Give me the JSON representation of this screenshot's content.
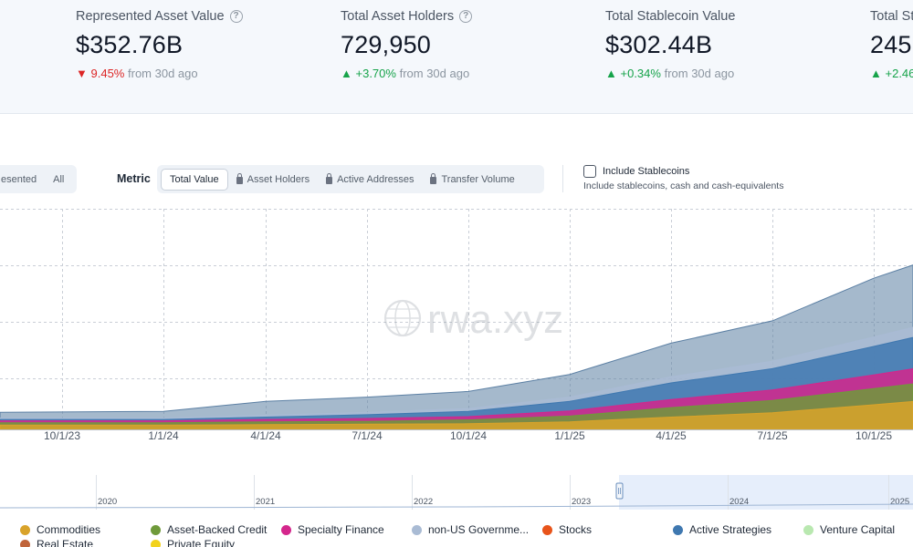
{
  "stats": [
    {
      "label": "Represented Asset Value",
      "value": "$352.76B",
      "direction": "down",
      "change": "9.45%",
      "period": "from 30d ago"
    },
    {
      "label": "Total Asset Holders",
      "value": "729,950",
      "direction": "up",
      "change": "+3.70%",
      "period": "from 30d ago"
    },
    {
      "label": "Total Stablecoin Value",
      "value": "$302.44B",
      "direction": "up",
      "change": "+0.34%",
      "period": "from 30d ago"
    },
    {
      "label": "Total Sta",
      "value": "245.",
      "direction": "up",
      "change": "+2.46"
    }
  ],
  "view_toggle": {
    "options": [
      "esented",
      "All"
    ]
  },
  "metric": {
    "label": "Metric",
    "options": [
      {
        "label": "Total Value",
        "active": true,
        "locked": false
      },
      {
        "label": "Asset Holders",
        "active": false,
        "locked": true
      },
      {
        "label": "Active Addresses",
        "active": false,
        "locked": true
      },
      {
        "label": "Transfer Volume",
        "active": false,
        "locked": true
      }
    ]
  },
  "stablecoin_toggle": {
    "label": "Include Stablecoins",
    "description": "Include stablecoins, cash and cash-equivalents",
    "checked": false
  },
  "watermark": "rwa.xyz",
  "navigator": {
    "years": [
      "2020",
      "2021",
      "2022",
      "2023",
      "2024",
      "2025"
    ]
  },
  "legend": [
    {
      "label": "Commodities",
      "color": "#d9a32a"
    },
    {
      "label": "Asset-Backed Credit",
      "color": "#6f9a3a"
    },
    {
      "label": "Specialty Finance",
      "color": "#d4268c"
    },
    {
      "label": "non-US Governme...",
      "color": "#a9bbd4"
    },
    {
      "label": "Stocks",
      "color": "#e8541a"
    },
    {
      "label": "Active Strategies",
      "color": "#3f78b0"
    },
    {
      "label": "Venture Capital",
      "color": "#b9e8b0"
    },
    {
      "label": "Real Estate",
      "color": "#c0643a"
    },
    {
      "label": "Private Equity",
      "color": "#f2d21c"
    }
  ],
  "chart_data": {
    "type": "area",
    "stacked": true,
    "x": [
      "10/1/23",
      "1/1/24",
      "4/1/24",
      "7/1/24",
      "10/1/24",
      "1/1/25",
      "4/1/25",
      "7/1/25",
      "10/1/25"
    ],
    "x_ticks": [
      "10/1/23",
      "1/1/24",
      "4/1/24",
      "7/1/24",
      "10/1/24",
      "1/1/25",
      "4/1/25",
      "7/1/25",
      "10/1/25"
    ],
    "grid": true,
    "y_tick_labels_visible": false,
    "series": [
      {
        "color": "#d9a32a",
        "values": [
          0.9,
          0.9,
          1.0,
          1.1,
          1.2,
          1.6,
          2.6,
          3.5,
          5.2
        ]
      },
      {
        "color": "#6f9a3a",
        "values": [
          0.5,
          0.5,
          0.6,
          0.6,
          0.8,
          1.2,
          2.0,
          2.6,
          3.4
        ]
      },
      {
        "color": "#d4268c",
        "values": [
          0.4,
          0.4,
          0.5,
          0.6,
          0.7,
          1.1,
          1.7,
          2.2,
          2.9
        ]
      },
      {
        "color": "#3f78b0",
        "values": [
          0.3,
          0.3,
          0.5,
          0.8,
          1.1,
          2.0,
          3.5,
          4.5,
          6.0
        ]
      },
      {
        "color": "#a9bbd4",
        "values": [
          0.3,
          0.3,
          0.4,
          0.5,
          0.6,
          0.9,
          1.3,
          1.6,
          2.0
        ]
      },
      {
        "color": "#5b7fa3",
        "values": [
          1.2,
          1.4,
          2.9,
          3.2,
          3.6,
          4.8,
          6.7,
          8.7,
          12.0
        ]
      }
    ]
  }
}
